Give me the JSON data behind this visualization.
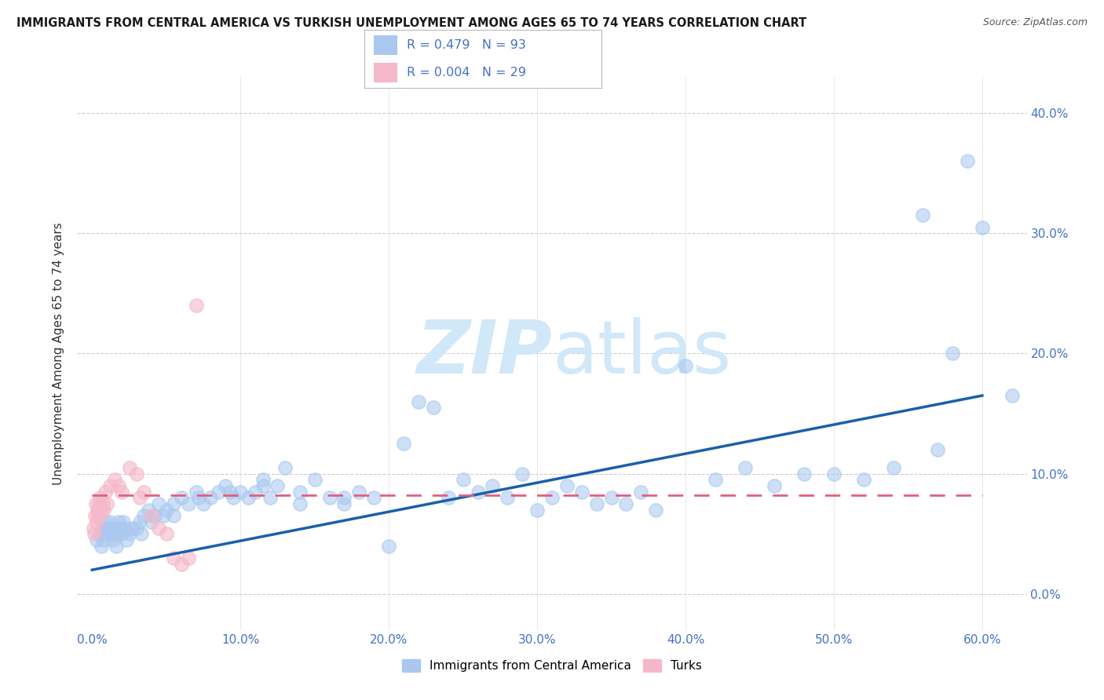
{
  "title": "IMMIGRANTS FROM CENTRAL AMERICA VS TURKISH UNEMPLOYMENT AMONG AGES 65 TO 74 YEARS CORRELATION CHART",
  "source": "Source: ZipAtlas.com",
  "xlabel_vals": [
    0.0,
    10.0,
    20.0,
    30.0,
    40.0,
    50.0,
    60.0
  ],
  "ylabel_vals": [
    0.0,
    10.0,
    20.0,
    30.0,
    40.0
  ],
  "xlim": [
    -1,
    63
  ],
  "ylim": [
    -3,
    43
  ],
  "ylabel": "Unemployment Among Ages 65 to 74 years",
  "blue_color": "#a8c8f0",
  "pink_color": "#f5b8c8",
  "blue_line_color": "#1a5faa",
  "pink_line_color": "#e06080",
  "watermark": "ZIPatlas",
  "watermark_zip_color": "#d0e8f8",
  "watermark_atlas_color": "#d0e8f8",
  "blue_trend_x0": 0,
  "blue_trend_x1": 60,
  "blue_trend_y0": 2.0,
  "blue_trend_y1": 16.5,
  "pink_trend_x0": 0,
  "pink_trend_x1": 60,
  "pink_trend_y0": 8.2,
  "pink_trend_y1": 8.2,
  "blue_scatter_x": [
    0.3,
    0.5,
    0.6,
    0.7,
    0.8,
    0.9,
    1.0,
    1.1,
    1.2,
    1.3,
    1.4,
    1.5,
    1.6,
    1.7,
    1.8,
    1.9,
    2.0,
    2.1,
    2.2,
    2.3,
    2.5,
    2.7,
    3.0,
    3.2,
    3.5,
    3.8,
    4.0,
    4.2,
    4.5,
    4.8,
    5.0,
    5.5,
    6.0,
    6.5,
    7.0,
    7.5,
    8.0,
    8.5,
    9.0,
    9.5,
    10.0,
    10.5,
    11.0,
    11.5,
    12.0,
    12.5,
    13.0,
    14.0,
    15.0,
    16.0,
    17.0,
    18.0,
    19.0,
    20.0,
    21.0,
    22.0,
    23.0,
    24.0,
    25.0,
    26.0,
    27.0,
    28.0,
    29.0,
    30.0,
    31.0,
    32.0,
    33.0,
    34.0,
    35.0,
    36.0,
    37.0,
    38.0,
    40.0,
    42.0,
    44.0,
    46.0,
    48.0,
    50.0,
    52.0,
    54.0,
    56.0,
    57.0,
    58.0,
    59.0,
    60.0,
    62.0,
    3.3,
    5.5,
    7.2,
    9.3,
    11.5,
    14.0,
    17.0
  ],
  "blue_scatter_y": [
    4.5,
    5.0,
    4.0,
    5.5,
    4.5,
    6.0,
    5.0,
    5.5,
    6.0,
    5.0,
    4.5,
    5.5,
    4.0,
    5.0,
    6.0,
    5.5,
    5.0,
    6.0,
    5.5,
    4.5,
    5.0,
    5.5,
    5.5,
    6.0,
    6.5,
    7.0,
    6.0,
    6.5,
    7.5,
    6.5,
    7.0,
    7.5,
    8.0,
    7.5,
    8.5,
    7.5,
    8.0,
    8.5,
    9.0,
    8.0,
    8.5,
    8.0,
    8.5,
    9.5,
    8.0,
    9.0,
    10.5,
    8.5,
    9.5,
    8.0,
    7.5,
    8.5,
    8.0,
    4.0,
    12.5,
    16.0,
    15.5,
    8.0,
    9.5,
    8.5,
    9.0,
    8.0,
    10.0,
    7.0,
    8.0,
    9.0,
    8.5,
    7.5,
    8.0,
    7.5,
    8.5,
    7.0,
    19.0,
    9.5,
    10.5,
    9.0,
    10.0,
    10.0,
    9.5,
    10.5,
    31.5,
    12.0,
    20.0,
    36.0,
    30.5,
    16.5,
    5.0,
    6.5,
    8.0,
    8.5,
    9.0,
    7.5,
    8.0
  ],
  "pink_scatter_x": [
    0.1,
    0.15,
    0.2,
    0.25,
    0.3,
    0.35,
    0.4,
    0.45,
    0.5,
    0.6,
    0.7,
    0.8,
    0.9,
    1.0,
    1.2,
    1.5,
    1.8,
    2.0,
    2.5,
    3.0,
    3.2,
    3.5,
    4.0,
    4.5,
    5.0,
    5.5,
    6.0,
    6.5,
    7.0
  ],
  "pink_scatter_y": [
    5.5,
    5.0,
    6.5,
    7.5,
    6.0,
    7.0,
    6.5,
    7.5,
    8.0,
    7.0,
    7.5,
    7.0,
    8.5,
    7.5,
    9.0,
    9.5,
    9.0,
    8.5,
    10.5,
    10.0,
    8.0,
    8.5,
    6.5,
    5.5,
    5.0,
    3.0,
    2.5,
    3.0,
    24.0
  ],
  "legend_R_blue": "0.479",
  "legend_N_blue": "93",
  "legend_R_pink": "0.004",
  "legend_N_pink": "29",
  "legend_text_color": "#4472C4",
  "title_fontsize": 10.5,
  "source_fontsize": 9,
  "axis_tick_color": "#4472C4",
  "axis_tick_fontsize": 11
}
